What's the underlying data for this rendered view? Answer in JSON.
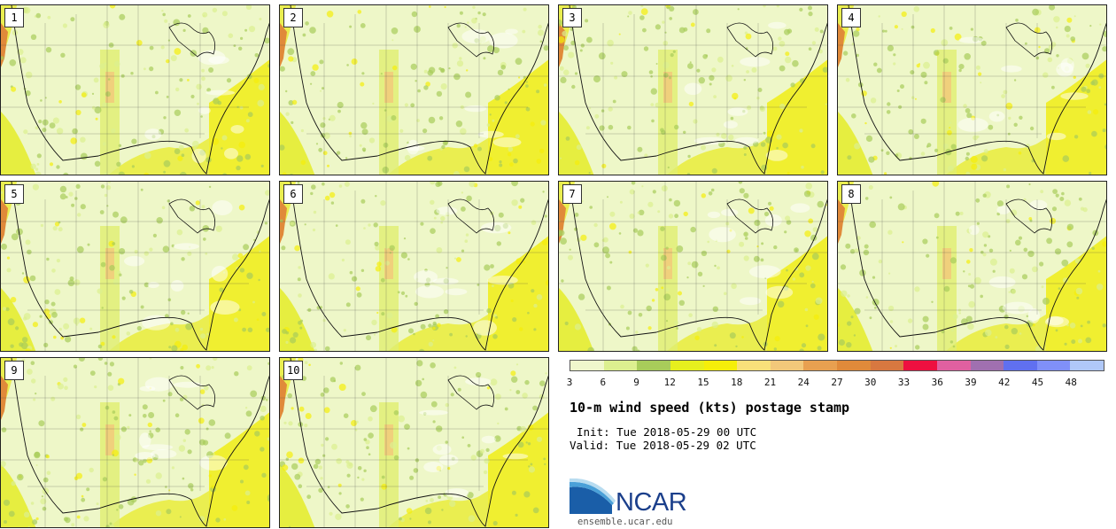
{
  "title": "10-m wind speed (kts) postage stamp",
  "init": "Init: Tue 2018-05-29 00 UTC",
  "valid": "Valid: Tue 2018-05-29 02 UTC",
  "site": "ensemble.ucar.edu",
  "logo_text": "NCAR",
  "members": [
    "1",
    "2",
    "3",
    "4",
    "5",
    "6",
    "7",
    "8",
    "9",
    "10"
  ],
  "colorbar": {
    "ticks": [
      "3",
      "6",
      "9",
      "12",
      "15",
      "18",
      "21",
      "24",
      "27",
      "30",
      "33",
      "36",
      "39",
      "42",
      "45",
      "48"
    ],
    "colors": [
      "#f0f7cc",
      "#dcef8f",
      "#a8cc5a",
      "#e6ef1e",
      "#f5ee0a",
      "#f8e07a",
      "#f2c87a",
      "#e8a050",
      "#e08a3a",
      "#d87840",
      "#ee1040",
      "#e060a0",
      "#a070b0",
      "#6070f0",
      "#8090f8",
      "#b0c8f8"
    ]
  }
}
